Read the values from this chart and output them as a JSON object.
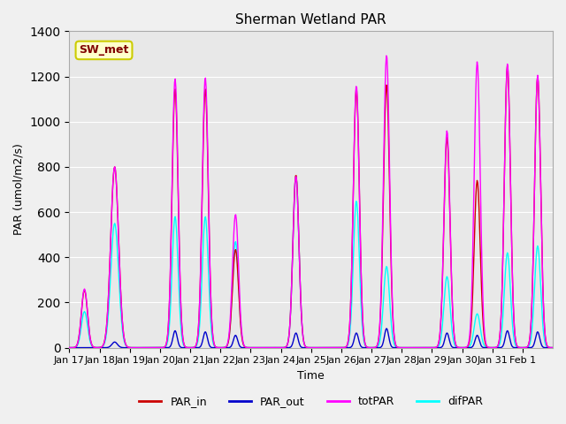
{
  "title": "Sherman Wetland PAR",
  "ylabel": "PAR (umol/m2/s)",
  "xlabel": "Time",
  "legend_label": "SW_met",
  "ylim": [
    0,
    1400
  ],
  "series": [
    "PAR_in",
    "PAR_out",
    "totPAR",
    "difPAR"
  ],
  "colors": {
    "PAR_in": "#cc0000",
    "PAR_out": "#0000cc",
    "totPAR": "#ff00ff",
    "difPAR": "#00ffff"
  },
  "x_tick_labels": [
    "Jan 17",
    "Jan 18",
    "Jan 19",
    "Jan 20",
    "Jan 21",
    "Jan 22",
    "Jan 23",
    "Jan 24",
    "Jan 25",
    "Jan 26",
    "Jan 27",
    "Jan 28",
    "Jan 29",
    "Jan 30",
    "Jan 31",
    "Feb 1"
  ],
  "background_color": "#e8e8e8",
  "plot_bg_color": "#e8e8e8",
  "grid_color": "#ffffff",
  "annotation_box_color": "#ffffcc",
  "annotation_box_edge": "#cccc00",
  "annotation_text_color": "#800000"
}
